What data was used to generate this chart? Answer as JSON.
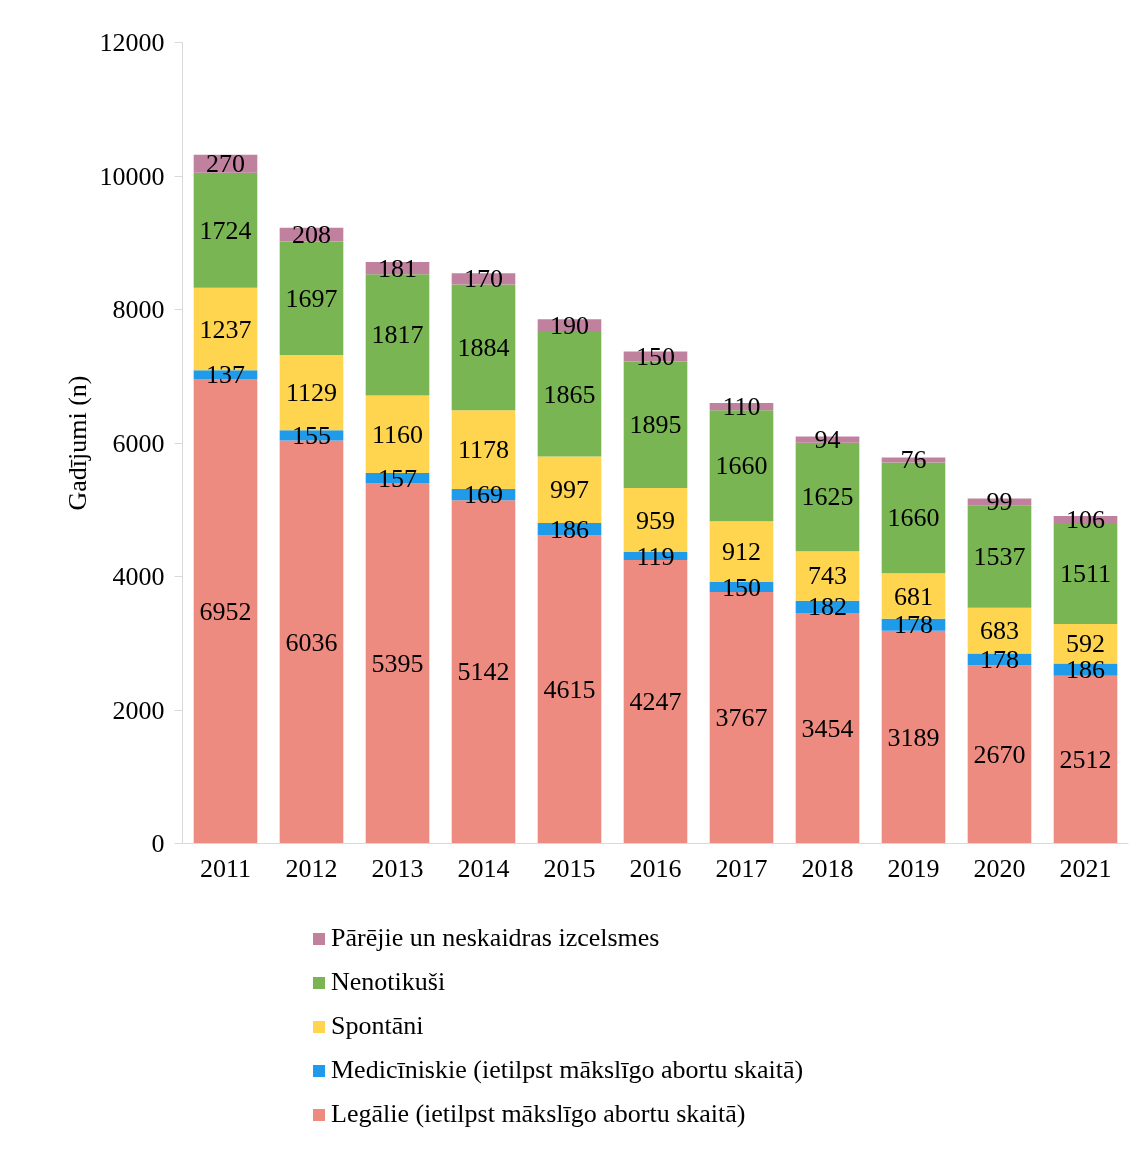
{
  "chart_data": {
    "type": "bar",
    "stacked": true,
    "ylabel": "Gadījumi (n)",
    "categories": [
      "2011",
      "2012",
      "2013",
      "2014",
      "2015",
      "2016",
      "2017",
      "2018",
      "2019",
      "2020",
      "2021"
    ],
    "series": [
      {
        "name": "Legālie (ietilpst mākslīgo abortu skaitā)",
        "color": "#ed8b80",
        "values": [
          6952,
          6036,
          5395,
          5142,
          4615,
          4247,
          3767,
          3454,
          3189,
          2670,
          2512
        ]
      },
      {
        "name": "Medicīniskie (ietilpst mākslīgo abortu skaitā)",
        "color": "#1f9bea",
        "values": [
          137,
          155,
          157,
          169,
          186,
          119,
          150,
          182,
          178,
          178,
          186
        ]
      },
      {
        "name": "Spontāni",
        "color": "#ffd54f",
        "values": [
          1237,
          1129,
          1160,
          1178,
          997,
          959,
          912,
          743,
          681,
          683,
          592
        ]
      },
      {
        "name": "Nenotikuši",
        "color": "#7ab554",
        "values": [
          1724,
          1697,
          1817,
          1884,
          1865,
          1895,
          1660,
          1625,
          1660,
          1537,
          1511
        ]
      },
      {
        "name": "Pārējie un neskaidras izcelsmes",
        "color": "#c0819f",
        "values": [
          270,
          208,
          181,
          170,
          190,
          150,
          110,
          94,
          76,
          99,
          106
        ]
      }
    ],
    "ylim": [
      0,
      12000
    ],
    "yticks": [
      0,
      2000,
      4000,
      6000,
      8000,
      10000,
      12000
    ],
    "data_labels": true,
    "legend": "bottom"
  }
}
